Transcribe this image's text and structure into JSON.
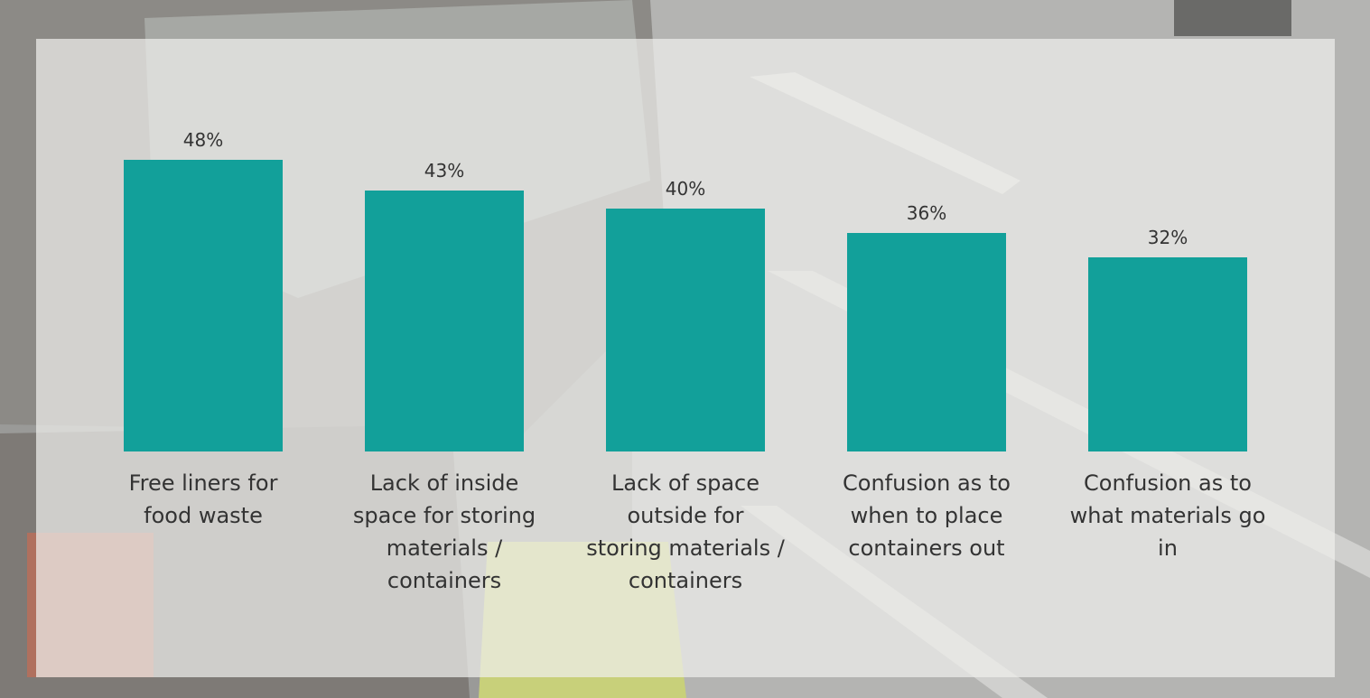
{
  "chart_data": {
    "type": "bar",
    "categories": [
      "Free liners for food waste",
      "Lack of inside space for storing materials / containers",
      "Lack of space outside for storing materials / containers",
      "Confusion as to when to place containers out",
      "Confusion as to what materials go in"
    ],
    "values": [
      48,
      43,
      40,
      36,
      32
    ],
    "value_labels": [
      "48%",
      "43%",
      "40%",
      "36%",
      "32%"
    ],
    "color": "#12a09a"
  }
}
